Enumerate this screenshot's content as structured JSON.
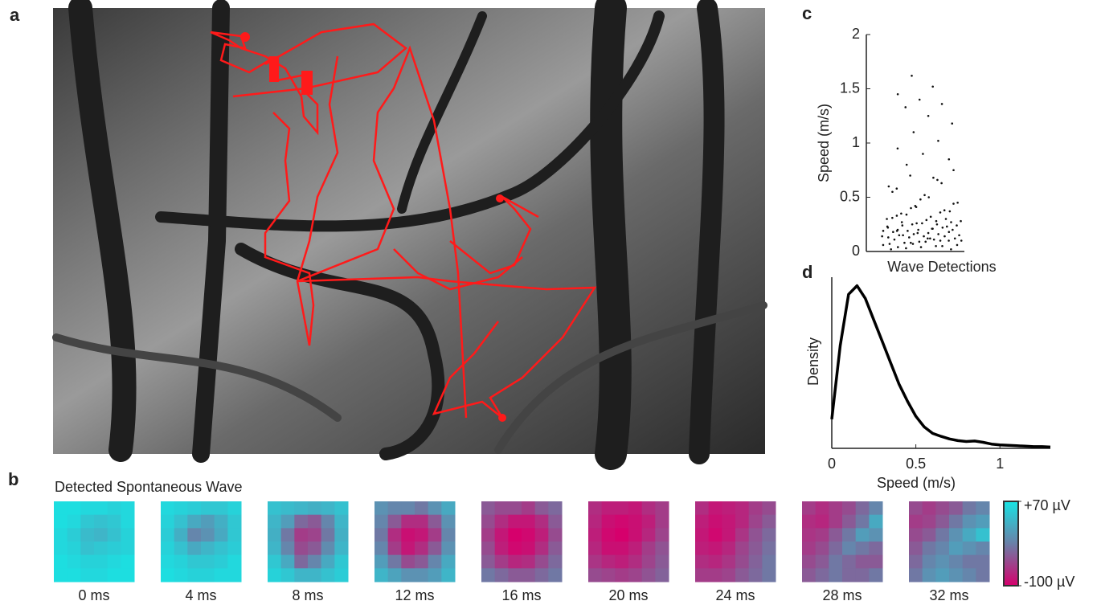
{
  "image_panel": {
    "label": "a"
  },
  "chart_data": [
    {
      "type": "heatmap",
      "label": "b",
      "title": "Detected Spontaneous Wave",
      "frames": [
        {
          "name": "0 ms",
          "values": [
            [
              65,
              65,
              60,
              60,
              55,
              60
            ],
            [
              65,
              60,
              45,
              40,
              45,
              60
            ],
            [
              60,
              50,
              35,
              30,
              40,
              55
            ],
            [
              60,
              55,
              40,
              45,
              50,
              55
            ],
            [
              65,
              60,
              55,
              55,
              60,
              65
            ],
            [
              65,
              65,
              60,
              60,
              65,
              65
            ]
          ]
        },
        {
          "name": "4 ms",
          "values": [
            [
              60,
              55,
              50,
              45,
              45,
              55
            ],
            [
              55,
              40,
              20,
              10,
              25,
              45
            ],
            [
              50,
              25,
              -10,
              0,
              20,
              45
            ],
            [
              55,
              40,
              20,
              30,
              40,
              50
            ],
            [
              60,
              55,
              45,
              45,
              50,
              60
            ],
            [
              65,
              60,
              55,
              55,
              60,
              60
            ]
          ]
        },
        {
          "name": "8 ms",
          "values": [
            [
              40,
              35,
              30,
              25,
              30,
              40
            ],
            [
              30,
              10,
              -30,
              -40,
              -10,
              30
            ],
            [
              25,
              -20,
              -60,
              -55,
              -20,
              25
            ],
            [
              30,
              -10,
              -50,
              -40,
              -5,
              30
            ],
            [
              45,
              20,
              -30,
              -10,
              20,
              45
            ],
            [
              55,
              45,
              30,
              30,
              40,
              50
            ]
          ]
        },
        {
          "name": "12 ms",
          "values": [
            [
              0,
              -10,
              -10,
              -20,
              0,
              20
            ],
            [
              -10,
              -40,
              -70,
              -70,
              -40,
              0
            ],
            [
              -20,
              -70,
              -90,
              -85,
              -60,
              -10
            ],
            [
              -10,
              -60,
              -85,
              -70,
              -40,
              0
            ],
            [
              10,
              -20,
              -50,
              -40,
              -10,
              20
            ],
            [
              30,
              15,
              0,
              0,
              10,
              30
            ]
          ]
        },
        {
          "name": "16 ms",
          "values": [
            [
              -40,
              -50,
              -50,
              -60,
              -40,
              -30
            ],
            [
              -50,
              -70,
              -85,
              -85,
              -70,
              -40
            ],
            [
              -60,
              -85,
              -100,
              -95,
              -80,
              -50
            ],
            [
              -50,
              -80,
              -95,
              -90,
              -70,
              -40
            ],
            [
              -40,
              -60,
              -75,
              -70,
              -50,
              -30
            ],
            [
              -20,
              -30,
              -40,
              -40,
              -30,
              -20
            ]
          ]
        },
        {
          "name": "20 ms",
          "values": [
            [
              -70,
              -80,
              -80,
              -85,
              -70,
              -60
            ],
            [
              -75,
              -90,
              -95,
              -90,
              -80,
              -60
            ],
            [
              -80,
              -95,
              -100,
              -90,
              -75,
              -55
            ],
            [
              -75,
              -90,
              -90,
              -80,
              -60,
              -45
            ],
            [
              -65,
              -75,
              -80,
              -70,
              -55,
              -40
            ],
            [
              -50,
              -55,
              -60,
              -55,
              -45,
              -35
            ]
          ]
        },
        {
          "name": "24 ms",
          "values": [
            [
              -70,
              -85,
              -80,
              -75,
              -60,
              -50
            ],
            [
              -80,
              -90,
              -85,
              -75,
              -55,
              -40
            ],
            [
              -85,
              -95,
              -85,
              -65,
              -45,
              -30
            ],
            [
              -80,
              -85,
              -75,
              -55,
              -40,
              -25
            ],
            [
              -70,
              -75,
              -65,
              -50,
              -35,
              -20
            ],
            [
              -60,
              -60,
              -55,
              -40,
              -30,
              -20
            ]
          ]
        },
        {
          "name": "28 ms",
          "values": [
            [
              -60,
              -70,
              -60,
              -50,
              -30,
              -10
            ],
            [
              -70,
              -75,
              -60,
              -40,
              -20,
              20
            ],
            [
              -65,
              -60,
              -40,
              -20,
              10,
              0
            ],
            [
              -60,
              -50,
              -30,
              -10,
              -20,
              -30
            ],
            [
              -50,
              -40,
              -20,
              -30,
              -40,
              -40
            ],
            [
              -40,
              -30,
              -20,
              -30,
              -30,
              -20
            ]
          ]
        },
        {
          "name": "32 ms",
          "values": [
            [
              -50,
              -60,
              -50,
              -40,
              -20,
              -10
            ],
            [
              -60,
              -55,
              -40,
              -20,
              0,
              10
            ],
            [
              -50,
              -40,
              -20,
              0,
              20,
              40
            ],
            [
              -40,
              -20,
              -10,
              10,
              0,
              -10
            ],
            [
              -30,
              -10,
              0,
              -10,
              -20,
              -20
            ],
            [
              -20,
              0,
              10,
              0,
              -10,
              -20
            ]
          ]
        }
      ],
      "colorbar": {
        "lim": [
          -100,
          70
        ],
        "colors": [
          "#d6006c",
          "#6a80a8",
          "#18e4e4"
        ],
        "ticks": [
          {
            "value": 70,
            "label": "+70 µV"
          },
          {
            "value": -100,
            "label": "-100 µV"
          }
        ]
      }
    },
    {
      "type": "strip",
      "label": "c",
      "y_label": "Speed (m/s)",
      "x_label": "Wave Detections",
      "color": "#111",
      "ylim": [
        0,
        2
      ],
      "yticks": [
        0,
        0.5,
        1,
        1.5,
        2
      ],
      "values": [
        0.02,
        0.05,
        0.08,
        0.1,
        0.12,
        0.15,
        0.18,
        0.2,
        0.22,
        0.25,
        0.03,
        0.06,
        0.09,
        0.11,
        0.14,
        0.16,
        0.19,
        0.21,
        0.24,
        0.27,
        0.04,
        0.07,
        0.1,
        0.13,
        0.15,
        0.17,
        0.2,
        0.23,
        0.26,
        0.3,
        0.05,
        0.08,
        0.12,
        0.14,
        0.18,
        0.22,
        0.25,
        0.28,
        0.32,
        0.35,
        0.02,
        0.09,
        0.13,
        0.16,
        0.19,
        0.24,
        0.29,
        0.33,
        0.38,
        0.42,
        0.06,
        0.11,
        0.15,
        0.2,
        0.26,
        0.31,
        0.36,
        0.4,
        0.45,
        0.5,
        0.04,
        0.1,
        0.17,
        0.23,
        0.28,
        0.34,
        0.44,
        0.52,
        0.58,
        0.63,
        0.07,
        0.14,
        0.21,
        0.27,
        0.37,
        0.48,
        0.55,
        0.66,
        0.7,
        0.75,
        0.12,
        0.19,
        0.3,
        0.41,
        0.6,
        0.68,
        0.8,
        0.85,
        0.9,
        0.95,
        1.02,
        1.1,
        1.18,
        1.25,
        1.33,
        1.36,
        1.4,
        1.45,
        1.52,
        1.62
      ]
    },
    {
      "type": "line",
      "label": "d",
      "x_label": "Speed (m/s)",
      "y_label": "Density",
      "color": "#000",
      "xlim": [
        0,
        1.3
      ],
      "ylim": [
        0,
        4
      ],
      "xticks": [
        0,
        0.5,
        1
      ],
      "x": [
        0,
        0.05,
        0.1,
        0.15,
        0.2,
        0.25,
        0.3,
        0.35,
        0.4,
        0.45,
        0.5,
        0.55,
        0.6,
        0.65,
        0.7,
        0.75,
        0.8,
        0.85,
        0.9,
        0.95,
        1,
        1.05,
        1.1,
        1.15,
        1.2,
        1.25,
        1.3
      ],
      "y": [
        0.68,
        2.4,
        3.6,
        3.8,
        3.5,
        3,
        2.5,
        2,
        1.5,
        1.1,
        0.75,
        0.5,
        0.35,
        0.28,
        0.22,
        0.18,
        0.16,
        0.17,
        0.14,
        0.1,
        0.08,
        0.07,
        0.06,
        0.05,
        0.04,
        0.04,
        0.03
      ]
    }
  ]
}
